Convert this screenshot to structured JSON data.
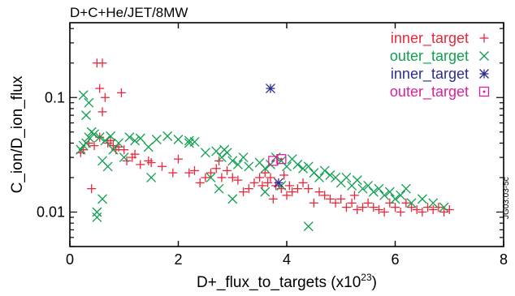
{
  "chart_data": {
    "type": "scatter",
    "title": "D+C+He/JET/8MW",
    "xlabel": "D+_flux_to_targets (x10",
    "xlabel_exp": "23",
    "xlabel_close": ")",
    "ylabel": "C_ion/D_ion_flux",
    "xlim": [
      0,
      8
    ],
    "ylim": [
      0.005,
      0.45
    ],
    "yscale": "log",
    "x_ticks": [
      0,
      2,
      4,
      6,
      8
    ],
    "y_ticks": [
      {
        "value": 0.01,
        "label": "0.01"
      },
      {
        "value": 0.1,
        "label": "0.1"
      }
    ],
    "grid": false,
    "legend_position": "top-right",
    "side_label": "JG03.03-5c",
    "series": [
      {
        "name": "inner_target",
        "marker": "plus",
        "color": "#e8283c",
        "points": [
          [
            0.2,
            0.033
          ],
          [
            0.25,
            0.035
          ],
          [
            0.35,
            0.04
          ],
          [
            0.4,
            0.016
          ],
          [
            0.45,
            0.038
          ],
          [
            0.5,
            0.2
          ],
          [
            0.55,
            0.045
          ],
          [
            0.55,
            0.12
          ],
          [
            0.6,
            0.2
          ],
          [
            0.6,
            0.075
          ],
          [
            0.65,
            0.1
          ],
          [
            0.7,
            0.04
          ],
          [
            0.75,
            0.042
          ],
          [
            0.8,
            0.038
          ],
          [
            0.85,
            0.035
          ],
          [
            0.9,
            0.037
          ],
          [
            0.95,
            0.11
          ],
          [
            1.0,
            0.035
          ],
          [
            1.05,
            0.028
          ],
          [
            1.15,
            0.03
          ],
          [
            1.2,
            0.032
          ],
          [
            1.3,
            0.026
          ],
          [
            1.45,
            0.028
          ],
          [
            1.5,
            0.027
          ],
          [
            1.7,
            0.025
          ],
          [
            1.9,
            0.022
          ],
          [
            2.0,
            0.029
          ],
          [
            2.2,
            0.022
          ],
          [
            2.3,
            0.023
          ],
          [
            2.4,
            0.018
          ],
          [
            2.5,
            0.02
          ],
          [
            2.6,
            0.022
          ],
          [
            2.7,
            0.024
          ],
          [
            2.75,
            0.028
          ],
          [
            2.8,
            0.02
          ],
          [
            2.9,
            0.023
          ],
          [
            3.0,
            0.02
          ],
          [
            3.1,
            0.019
          ],
          [
            3.2,
            0.015
          ],
          [
            3.3,
            0.016
          ],
          [
            3.4,
            0.018
          ],
          [
            3.5,
            0.02
          ],
          [
            3.55,
            0.017
          ],
          [
            3.6,
            0.022
          ],
          [
            3.65,
            0.018
          ],
          [
            3.7,
            0.02
          ],
          [
            3.75,
            0.013
          ],
          [
            3.8,
            0.017
          ],
          [
            3.9,
            0.016
          ],
          [
            3.95,
            0.021
          ],
          [
            4.0,
            0.014
          ],
          [
            4.05,
            0.017
          ],
          [
            4.1,
            0.015
          ],
          [
            4.2,
            0.016
          ],
          [
            4.3,
            0.018
          ],
          [
            4.4,
            0.016
          ],
          [
            4.5,
            0.012
          ],
          [
            4.6,
            0.015
          ],
          [
            4.7,
            0.014
          ],
          [
            4.8,
            0.013
          ],
          [
            4.9,
            0.012
          ],
          [
            5.0,
            0.013
          ],
          [
            5.1,
            0.011
          ],
          [
            5.2,
            0.012
          ],
          [
            5.25,
            0.014
          ],
          [
            5.3,
            0.0105
          ],
          [
            5.4,
            0.011
          ],
          [
            5.5,
            0.012
          ],
          [
            5.6,
            0.011
          ],
          [
            5.7,
            0.0105
          ],
          [
            5.8,
            0.01
          ],
          [
            5.9,
            0.012
          ],
          [
            6.0,
            0.011
          ],
          [
            6.1,
            0.01
          ],
          [
            6.2,
            0.012
          ],
          [
            6.3,
            0.011
          ],
          [
            6.4,
            0.0105
          ],
          [
            6.5,
            0.01
          ],
          [
            6.6,
            0.011
          ],
          [
            6.7,
            0.0105
          ],
          [
            6.8,
            0.011
          ],
          [
            6.9,
            0.01
          ],
          [
            7.0,
            0.0105
          ]
        ]
      },
      {
        "name": "outer_target",
        "marker": "x",
        "color": "#10a050",
        "points": [
          [
            0.2,
            0.035
          ],
          [
            0.25,
            0.038
          ],
          [
            0.3,
            0.04
          ],
          [
            0.3,
            0.07
          ],
          [
            0.35,
            0.045
          ],
          [
            0.4,
            0.05
          ],
          [
            0.45,
            0.048
          ],
          [
            0.5,
            0.01
          ],
          [
            0.5,
            0.009
          ],
          [
            0.55,
            0.045
          ],
          [
            0.6,
            0.013
          ],
          [
            0.6,
            0.028
          ],
          [
            0.65,
            0.042
          ],
          [
            0.7,
            0.025
          ],
          [
            0.75,
            0.046
          ],
          [
            0.8,
            0.035
          ],
          [
            0.9,
            0.04
          ],
          [
            1.0,
            0.03
          ],
          [
            1.1,
            0.045
          ],
          [
            1.2,
            0.042
          ],
          [
            1.3,
            0.044
          ],
          [
            1.45,
            0.037
          ],
          [
            1.5,
            0.02
          ],
          [
            1.6,
            0.043
          ],
          [
            1.8,
            0.046
          ],
          [
            2.0,
            0.043
          ],
          [
            2.2,
            0.04
          ],
          [
            2.3,
            0.041
          ],
          [
            2.5,
            0.033
          ],
          [
            2.6,
            0.02
          ],
          [
            2.7,
            0.034
          ],
          [
            2.75,
            0.016
          ],
          [
            2.8,
            0.03
          ],
          [
            2.85,
            0.035
          ],
          [
            2.9,
            0.033
          ],
          [
            3.0,
            0.028
          ],
          [
            3.1,
            0.026
          ],
          [
            3.2,
            0.03
          ],
          [
            3.3,
            0.025
          ],
          [
            3.5,
            0.027
          ],
          [
            3.6,
            0.024
          ],
          [
            3.7,
            0.026
          ],
          [
            3.8,
            0.03
          ],
          [
            3.9,
            0.028
          ],
          [
            4.0,
            0.025
          ],
          [
            4.1,
            0.029
          ],
          [
            4.2,
            0.026
          ],
          [
            4.3,
            0.024
          ],
          [
            4.4,
            0.025
          ],
          [
            4.5,
            0.022
          ],
          [
            4.6,
            0.02
          ],
          [
            4.7,
            0.023
          ],
          [
            4.8,
            0.021
          ],
          [
            4.9,
            0.02
          ],
          [
            5.0,
            0.018
          ],
          [
            5.1,
            0.02
          ],
          [
            5.2,
            0.017
          ],
          [
            5.3,
            0.019
          ],
          [
            5.4,
            0.016
          ],
          [
            5.5,
            0.017
          ],
          [
            5.6,
            0.015
          ],
          [
            5.7,
            0.016
          ],
          [
            5.8,
            0.014
          ],
          [
            5.9,
            0.015
          ],
          [
            6.0,
            0.013
          ],
          [
            6.1,
            0.014
          ],
          [
            6.2,
            0.016
          ],
          [
            6.3,
            0.012
          ],
          [
            6.5,
            0.013
          ],
          [
            6.7,
            0.012
          ],
          [
            6.9,
            0.011
          ],
          [
            2.2,
            0.042
          ],
          [
            0.35,
            0.09
          ],
          [
            0.25,
            0.105
          ],
          [
            4.4,
            0.0075
          ],
          [
            3.0,
            0.013
          ],
          [
            3.6,
            0.015
          ],
          [
            3.9,
            0.017
          ]
        ]
      },
      {
        "name": "inner_target",
        "marker": "star",
        "color": "#2b2d8e",
        "points": [
          [
            3.7,
            0.12
          ],
          [
            3.85,
            0.018
          ]
        ]
      },
      {
        "name": "outer_target",
        "marker": "square",
        "color": "#e0209a",
        "points": [
          [
            3.75,
            0.028
          ],
          [
            3.9,
            0.029
          ]
        ]
      }
    ]
  }
}
